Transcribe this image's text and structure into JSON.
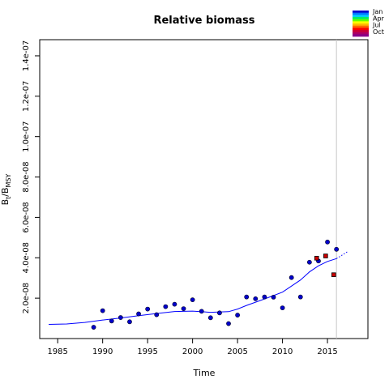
{
  "chart_data": {
    "type": "scatter",
    "title": "Relative biomass",
    "xlabel": "Time",
    "ylabel_main": "B",
    "ylabel_sub1": "t",
    "ylabel_mid": "/B",
    "ylabel_sub2": "MSY",
    "xlim": [
      1983,
      2019.5
    ],
    "ylim": [
      0,
      1.48e-07
    ],
    "x_ticks": [
      1985,
      1990,
      1995,
      2000,
      2005,
      2010,
      2015
    ],
    "x_tick_labels": [
      "1985",
      "1990",
      "1995",
      "2000",
      "2005",
      "2010",
      "2015"
    ],
    "y_ticks": [
      2e-08,
      4e-08,
      6e-08,
      8e-08,
      1e-07,
      1.2e-07,
      1.4e-07
    ],
    "y_tick_labels": [
      "2.0e-08",
      "4.0e-08",
      "6.0e-08",
      "8.0e-08",
      "1.0e-07",
      "1.2e-07",
      "1.4e-07"
    ],
    "vline_x": 2016,
    "grid": false,
    "legend_position": "top-right",
    "legend_labels": [
      "Jan",
      "Apr",
      "Jul",
      "Oct"
    ],
    "legend_colors": [
      "#0000cc",
      "#0077ff",
      "#00ccff",
      "#00ee66",
      "#66ff00",
      "#ffff00",
      "#ffbb00",
      "#ff6600",
      "#ff0000",
      "#cc0033",
      "#aa0066",
      "#880088"
    ],
    "series": [
      {
        "kind": "points",
        "color": "#0000cc",
        "x": [
          1989,
          1990,
          1991,
          1992,
          1993,
          1994,
          1995,
          1996,
          1997,
          1998,
          1999,
          2000,
          2001,
          2002,
          2003,
          2004,
          2005,
          2006,
          2007,
          2008,
          2009,
          2010,
          2011,
          2012,
          2013,
          2014,
          2015,
          2016
        ],
        "y": [
          5.6e-09,
          1.38e-08,
          8.7e-09,
          1.04e-08,
          8.3e-09,
          1.22e-08,
          1.46e-08,
          1.18e-08,
          1.58e-08,
          1.7e-08,
          1.48e-08,
          1.92e-08,
          1.35e-08,
          1.03e-08,
          1.27e-08,
          7.4e-09,
          1.16e-08,
          2.06e-08,
          1.97e-08,
          2.06e-08,
          2.05e-08,
          1.52e-08,
          3.02e-08,
          2.06e-08,
          3.78e-08,
          3.84e-08,
          4.78e-08,
          4.42e-08
        ]
      },
      {
        "kind": "line",
        "color": "#0000ff",
        "x": [
          1984,
          1986,
          1988,
          1990,
          1992,
          1994,
          1996,
          1998,
          2000,
          2002,
          2004,
          2005,
          2006,
          2008,
          2010,
          2012,
          2013,
          2014,
          2015,
          2016
        ],
        "y": [
          7e-09,
          7.2e-09,
          8e-09,
          9.2e-09,
          1.02e-08,
          1.13e-08,
          1.24e-08,
          1.34e-08,
          1.36e-08,
          1.3e-08,
          1.33e-08,
          1.46e-08,
          1.64e-08,
          1.96e-08,
          2.3e-08,
          2.9e-08,
          3.3e-08,
          3.6e-08,
          3.82e-08,
          3.96e-08
        ]
      },
      {
        "kind": "dotted",
        "color": "#0000ff",
        "x": [
          2016,
          2017.3
        ],
        "y": [
          3.96e-08,
          4.32e-08
        ]
      },
      {
        "kind": "squares",
        "color": "#cc0000",
        "x": [
          2013.8,
          2014.8,
          2015.7
        ],
        "y": [
          3.98e-08,
          4.09e-08,
          3.16e-08
        ]
      }
    ]
  }
}
